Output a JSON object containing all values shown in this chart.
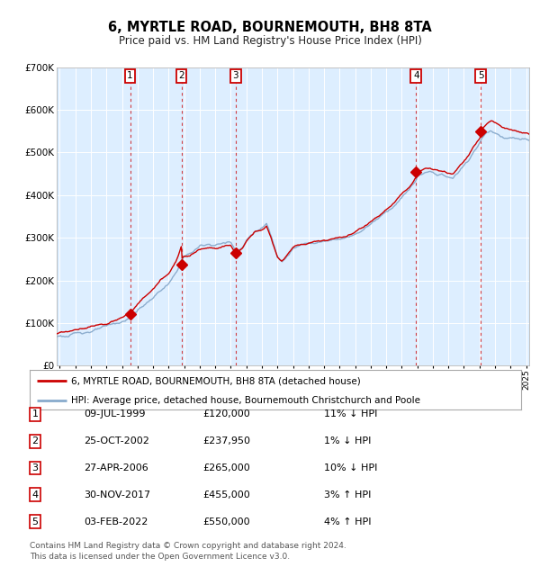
{
  "title": "6, MYRTLE ROAD, BOURNEMOUTH, BH8 8TA",
  "subtitle": "Price paid vs. HM Land Registry's House Price Index (HPI)",
  "legend_line1": "6, MYRTLE ROAD, BOURNEMOUTH, BH8 8TA (detached house)",
  "legend_line2": "HPI: Average price, detached house, Bournemouth Christchurch and Poole",
  "footer_line1": "Contains HM Land Registry data © Crown copyright and database right 2024.",
  "footer_line2": "This data is licensed under the Open Government Licence v3.0.",
  "red_color": "#cc0000",
  "blue_color": "#88aacc",
  "bg_color": "#ddeeff",
  "grid_color": "#ffffff",
  "sale_years": [
    1999.52,
    2002.82,
    2006.32,
    2017.92,
    2022.09
  ],
  "sale_prices": [
    120000,
    237950,
    265000,
    455000,
    550000
  ],
  "sale_labels": [
    "1",
    "2",
    "3",
    "4",
    "5"
  ],
  "table_rows": [
    {
      "num": "1",
      "date": "09-JUL-1999",
      "price": "£120,000",
      "hpi": "11% ↓ HPI"
    },
    {
      "num": "2",
      "date": "25-OCT-2002",
      "price": "£237,950",
      "hpi": "1% ↓ HPI"
    },
    {
      "num": "3",
      "date": "27-APR-2006",
      "price": "£265,000",
      "hpi": "10% ↓ HPI"
    },
    {
      "num": "4",
      "date": "30-NOV-2017",
      "price": "£455,000",
      "hpi": "3% ↑ HPI"
    },
    {
      "num": "5",
      "date": "03-FEB-2022",
      "price": "£550,000",
      "hpi": "4% ↑ HPI"
    }
  ],
  "ylim": [
    0,
    700000
  ],
  "yticks": [
    0,
    100000,
    200000,
    300000,
    400000,
    500000,
    600000,
    700000
  ],
  "ytick_labels": [
    "£0",
    "£100K",
    "£200K",
    "£300K",
    "£400K",
    "£500K",
    "£600K",
    "£700K"
  ]
}
